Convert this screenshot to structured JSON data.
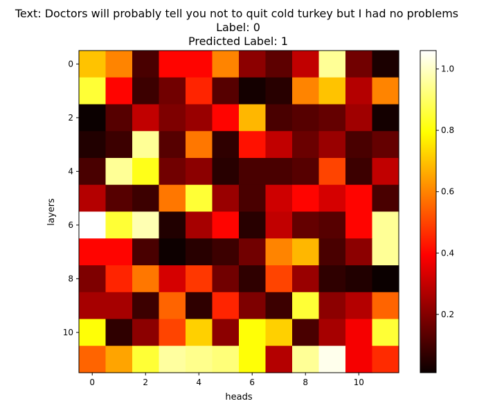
{
  "chart_data": {
    "type": "heatmap",
    "title_lines": [
      "Text: Doctors will probably tell you not to quit cold turkey but I had no problems",
      "Label: 0",
      "Predicted Label: 1"
    ],
    "xlabel": "heads",
    "ylabel": "layers",
    "x_ticks": [
      0,
      2,
      4,
      6,
      8,
      10
    ],
    "y_ticks": [
      0,
      2,
      4,
      6,
      8,
      10
    ],
    "colormap": "hot",
    "colorbar": {
      "vmin": 0.01,
      "vmax": 1.06,
      "ticks": [
        0.2,
        0.4,
        0.6,
        0.8,
        1.0
      ],
      "tick_labels": [
        "0.2",
        "0.4",
        "0.6",
        "0.8",
        "1.0"
      ]
    },
    "values": [
      [
        0.7,
        0.6,
        0.12,
        0.4,
        0.4,
        0.6,
        0.22,
        0.15,
        0.3,
        0.95,
        0.18,
        0.05
      ],
      [
        0.85,
        0.4,
        0.1,
        0.18,
        0.45,
        0.14,
        0.04,
        0.07,
        0.6,
        0.7,
        0.28,
        0.6
      ],
      [
        0.02,
        0.14,
        0.3,
        0.2,
        0.24,
        0.4,
        0.68,
        0.12,
        0.14,
        0.16,
        0.25,
        0.04
      ],
      [
        0.06,
        0.1,
        0.95,
        0.14,
        0.58,
        0.08,
        0.42,
        0.3,
        0.17,
        0.24,
        0.12,
        0.16
      ],
      [
        0.12,
        0.95,
        0.82,
        0.18,
        0.22,
        0.07,
        0.12,
        0.12,
        0.14,
        0.5,
        0.1,
        0.3
      ],
      [
        0.28,
        0.14,
        0.1,
        0.58,
        0.85,
        0.24,
        0.12,
        0.32,
        0.4,
        0.33,
        0.4,
        0.12
      ],
      [
        1.06,
        0.85,
        0.98,
        0.06,
        0.26,
        0.4,
        0.07,
        0.3,
        0.16,
        0.14,
        0.4,
        0.95
      ],
      [
        0.4,
        0.4,
        0.12,
        0.03,
        0.07,
        0.1,
        0.18,
        0.6,
        0.68,
        0.12,
        0.22,
        0.95
      ],
      [
        0.2,
        0.45,
        0.58,
        0.33,
        0.48,
        0.18,
        0.08,
        0.5,
        0.24,
        0.08,
        0.06,
        0.01
      ],
      [
        0.26,
        0.26,
        0.1,
        0.55,
        0.08,
        0.45,
        0.2,
        0.1,
        0.85,
        0.22,
        0.28,
        0.55
      ],
      [
        0.8,
        0.08,
        0.22,
        0.5,
        0.72,
        0.22,
        0.8,
        0.72,
        0.12,
        0.26,
        0.38,
        0.85
      ],
      [
        0.55,
        0.65,
        0.85,
        0.96,
        0.94,
        0.92,
        0.8,
        0.28,
        0.95,
        1.04,
        0.38,
        0.46
      ]
    ]
  }
}
